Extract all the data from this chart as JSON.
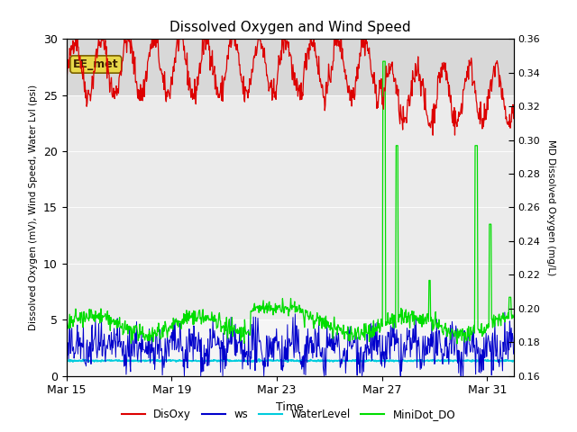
{
  "title": "Dissolved Oxygen and Wind Speed",
  "xlabel": "Time",
  "ylabel_left": "Dissolved Oxygen (mV), Wind Speed, Water Lvl (psi)",
  "ylabel_right": "MD Dissolved Oxygen (mg/L)",
  "ylim_left": [
    0,
    30
  ],
  "ylim_right": [
    0.16,
    0.36
  ],
  "yticks_left": [
    0,
    5,
    10,
    15,
    20,
    25,
    30
  ],
  "yticks_right": [
    0.16,
    0.18,
    0.2,
    0.22,
    0.24,
    0.26,
    0.28,
    0.3,
    0.32,
    0.34,
    0.36
  ],
  "xtick_positions": [
    0,
    4,
    8,
    12,
    16
  ],
  "xtick_labels": [
    "Mar 15",
    "Mar 19",
    "Mar 23",
    "Mar 27",
    "Mar 31"
  ],
  "annotation_text": "EE_met",
  "fig_bg": "#ffffff",
  "plot_bg": "#ffffff",
  "band_top_color": "#d8d8d8",
  "band_mid_color": "#ebebeb",
  "band_bot_color": "#f5f5f5",
  "colors": {
    "DisOxy": "#dd0000",
    "ws": "#0000cc",
    "WaterLevel": "#00ccdd",
    "MiniDot_DO": "#00dd00"
  },
  "legend_labels": [
    "DisOxy",
    "ws",
    "WaterLevel",
    "MiniDot_DO"
  ],
  "xlim": [
    0,
    17
  ]
}
